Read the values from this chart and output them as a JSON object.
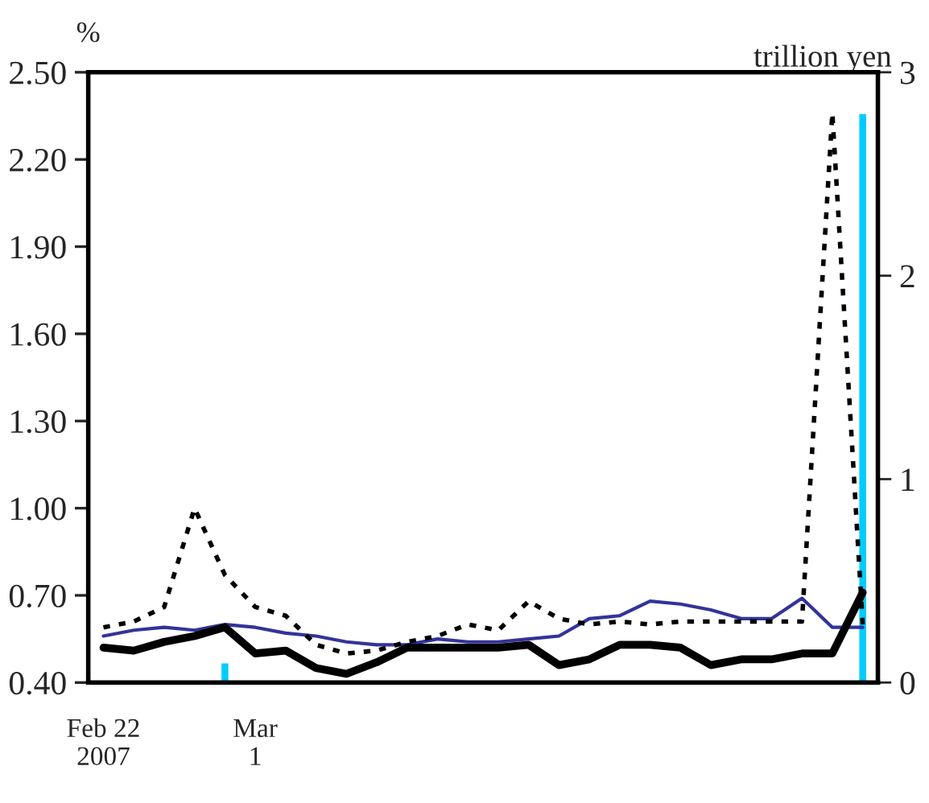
{
  "chart_data": {
    "type": "line",
    "ylabel": "%",
    "y2label": "trillion yen",
    "categories": [
      "Feb 22\n2007",
      null,
      null,
      null,
      null,
      "Mar\n1",
      null,
      null,
      null,
      null,
      null,
      null,
      null,
      null,
      null,
      null,
      null,
      null,
      null,
      null,
      null,
      null,
      null,
      null,
      null,
      null
    ],
    "series": [
      {
        "type": "bar",
        "axis": "y2",
        "color": "#00ccff",
        "values": [
          null,
          null,
          null,
          null,
          0.1,
          null,
          null,
          null,
          null,
          null,
          null,
          null,
          null,
          null,
          null,
          null,
          null,
          null,
          null,
          null,
          null,
          null,
          null,
          null,
          null,
          2.8
        ]
      },
      {
        "color": "#000000",
        "line_style": "dotted",
        "values": [
          0.59,
          0.61,
          0.66,
          1.0,
          0.77,
          0.66,
          0.63,
          0.53,
          0.5,
          0.51,
          0.54,
          0.56,
          0.6,
          0.58,
          0.68,
          0.62,
          0.6,
          0.61,
          0.6,
          0.61,
          0.61,
          0.61,
          0.61,
          0.61,
          2.36,
          0.6
        ]
      },
      {
        "color": "#333399",
        "line_style": "solid",
        "values": [
          0.56,
          0.58,
          0.59,
          0.58,
          0.6,
          0.59,
          0.57,
          0.56,
          0.54,
          0.53,
          0.53,
          0.55,
          0.54,
          0.54,
          0.55,
          0.56,
          0.62,
          0.63,
          0.68,
          0.67,
          0.65,
          0.62,
          0.62,
          0.69,
          0.59,
          0.59
        ]
      },
      {
        "color": "#000000",
        "line_style": "solid",
        "values": [
          0.52,
          0.51,
          0.54,
          0.56,
          0.59,
          0.5,
          0.51,
          0.45,
          0.43,
          0.47,
          0.52,
          0.52,
          0.52,
          0.52,
          0.53,
          0.46,
          0.48,
          0.53,
          0.53,
          0.52,
          0.46,
          0.48,
          0.48,
          0.5,
          0.5,
          0.71
        ]
      }
    ],
    "ylim": [
      0.4,
      2.5
    ],
    "yticks": [
      {
        "value": 0.4,
        "label": "0.40"
      },
      {
        "value": 0.7,
        "label": "0.70"
      },
      {
        "value": 1.0,
        "label": "1.00"
      },
      {
        "value": 1.3,
        "label": "1.30"
      },
      {
        "value": 1.6,
        "label": "1.60"
      },
      {
        "value": 1.9,
        "label": "1.90"
      },
      {
        "value": 2.2,
        "label": "2.20"
      },
      {
        "value": 2.5,
        "label": "2.50"
      }
    ],
    "y2lim": [
      0,
      3
    ],
    "y2ticks": [
      0,
      1,
      2,
      3
    ],
    "grid": false,
    "legend": false,
    "marker": "none"
  }
}
